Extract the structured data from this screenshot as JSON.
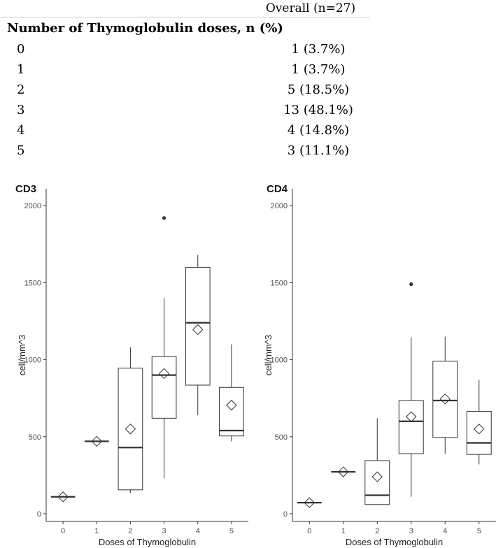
{
  "table": {
    "column_header": "Overall (n=27)",
    "section_title": "Number of Thymoglobulin doses, n (%)",
    "rows": [
      {
        "label": "0",
        "value": "1 (3.7%)"
      },
      {
        "label": "1",
        "value": "1 (3.7%)"
      },
      {
        "label": "2",
        "value": "5 (18.5%)"
      },
      {
        "label": "3",
        "value": "13 (48.1%)"
      },
      {
        "label": "4",
        "value": "4 (14.8%)"
      },
      {
        "label": "5",
        "value": "3 (11.1%)"
      }
    ]
  },
  "chart_data": [
    {
      "type": "box",
      "title": "CD3",
      "xlabel": "Doses of Thymoglobulin",
      "ylabel": "cell/mm^3",
      "categories": [
        "0",
        "1",
        "2",
        "3",
        "4",
        "5"
      ],
      "yticks": [
        0,
        500,
        1000,
        1500,
        2000
      ],
      "ylim": [
        -50,
        2110
      ],
      "grid": false,
      "boxes": [
        {
          "x": "0",
          "min": 110,
          "q1": 110,
          "median": 110,
          "q3": 110,
          "max": 110,
          "mean": 110,
          "outliers": []
        },
        {
          "x": "1",
          "min": 470,
          "q1": 470,
          "median": 470,
          "q3": 470,
          "max": 470,
          "mean": 470,
          "outliers": []
        },
        {
          "x": "2",
          "min": 135,
          "q1": 155,
          "median": 430,
          "q3": 945,
          "max": 1080,
          "mean": 550,
          "outliers": []
        },
        {
          "x": "3",
          "min": 230,
          "q1": 620,
          "median": 900,
          "q3": 1020,
          "max": 1400,
          "mean": 910,
          "outliers": [
            1920
          ]
        },
        {
          "x": "4",
          "min": 640,
          "q1": 835,
          "median": 1240,
          "q3": 1600,
          "max": 1680,
          "mean": 1195,
          "outliers": []
        },
        {
          "x": "5",
          "min": 470,
          "q1": 505,
          "median": 540,
          "q3": 820,
          "max": 1100,
          "mean": 705,
          "outliers": []
        }
      ]
    },
    {
      "type": "box",
      "title": "CD4",
      "xlabel": "Doses of Thymoglobulin",
      "ylabel": "cell/mm^3",
      "categories": [
        "0",
        "1",
        "2",
        "3",
        "4",
        "5"
      ],
      "yticks": [
        0,
        500,
        1000,
        1500,
        2000
      ],
      "ylim": [
        -50,
        2110
      ],
      "grid": false,
      "boxes": [
        {
          "x": "0",
          "min": 72,
          "q1": 72,
          "median": 72,
          "q3": 72,
          "max": 72,
          "mean": 72,
          "outliers": []
        },
        {
          "x": "1",
          "min": 272,
          "q1": 272,
          "median": 272,
          "q3": 272,
          "max": 272,
          "mean": 272,
          "outliers": []
        },
        {
          "x": "2",
          "min": 60,
          "q1": 60,
          "median": 120,
          "q3": 345,
          "max": 620,
          "mean": 240,
          "outliers": []
        },
        {
          "x": "3",
          "min": 110,
          "q1": 390,
          "median": 600,
          "q3": 735,
          "max": 1145,
          "mean": 630,
          "outliers": [
            1490
          ]
        },
        {
          "x": "4",
          "min": 390,
          "q1": 495,
          "median": 735,
          "q3": 990,
          "max": 1150,
          "mean": 745,
          "outliers": []
        },
        {
          "x": "5",
          "min": 320,
          "q1": 385,
          "median": 460,
          "q3": 665,
          "max": 870,
          "mean": 550,
          "outliers": []
        }
      ]
    }
  ]
}
